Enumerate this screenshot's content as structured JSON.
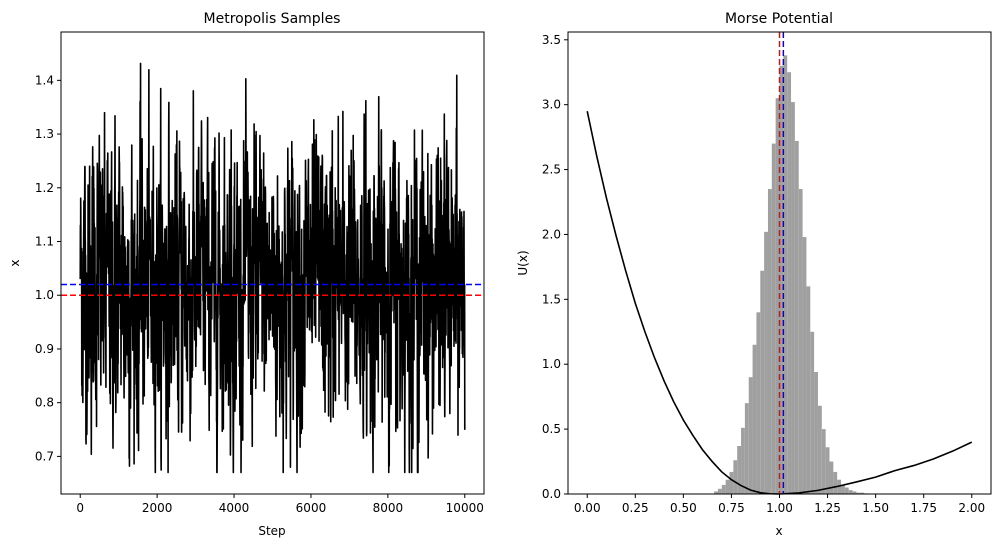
{
  "chart_data": [
    {
      "type": "line",
      "title": "Metropolis Samples",
      "xlabel": "Step",
      "ylabel": "x",
      "xlim": [
        -500,
        10500
      ],
      "ylim": [
        0.63,
        1.49
      ],
      "xticks": [
        0,
        2000,
        4000,
        6000,
        8000,
        10000
      ],
      "xtick_labels": [
        "0",
        "2000",
        "4000",
        "6000",
        "8000",
        "10000"
      ],
      "yticks": [
        0.7,
        0.8,
        0.9,
        1.0,
        1.1,
        1.2,
        1.3,
        1.4
      ],
      "ytick_labels": [
        "0.7",
        "0.8",
        "0.9",
        "1.0",
        "1.1",
        "1.2",
        "1.3",
        "1.4"
      ],
      "grid": false,
      "series": [
        {
          "color": "#000000",
          "n_steps": 10000,
          "start": 1.1,
          "mean": 1.02,
          "std": 0.13,
          "min": 0.67,
          "max": 1.45
        }
      ],
      "hlines": [
        {
          "y": 1.0,
          "color": "#ff0000",
          "style": "dashed"
        },
        {
          "y": 1.02,
          "color": "#0000ff",
          "style": "dashed"
        }
      ]
    },
    {
      "type": "line",
      "title": "Morse Potential",
      "xlabel": "x",
      "ylabel": "U(x)",
      "xlim": [
        -0.1,
        2.1
      ],
      "ylim": [
        0,
        3.56
      ],
      "xticks": [
        0,
        0.25,
        0.5,
        0.75,
        1.0,
        1.25,
        1.5,
        1.75,
        2.0
      ],
      "xtick_labels": [
        "0.00",
        "0.25",
        "0.50",
        "0.75",
        "1.00",
        "1.25",
        "1.50",
        "1.75",
        "2.00"
      ],
      "yticks": [
        0,
        0.5,
        1.0,
        1.5,
        2.0,
        2.5,
        3.0,
        3.5
      ],
      "ytick_labels": [
        "0.0",
        "0.5",
        "1.0",
        "1.5",
        "2.0",
        "2.5",
        "3.0",
        "3.5"
      ],
      "grid": false,
      "curve": {
        "color": "#000000",
        "x": [
          0,
          0.05,
          0.1,
          0.15,
          0.2,
          0.25,
          0.3,
          0.35,
          0.4,
          0.45,
          0.5,
          0.55,
          0.6,
          0.65,
          0.7,
          0.75,
          0.8,
          0.85,
          0.9,
          0.95,
          1.0,
          1.1,
          1.2,
          1.3,
          1.4,
          1.5,
          1.6,
          1.7,
          1.8,
          1.9,
          2.0
        ],
        "y": [
          2.95,
          2.6,
          2.28,
          1.99,
          1.72,
          1.47,
          1.25,
          1.05,
          0.87,
          0.71,
          0.57,
          0.45,
          0.34,
          0.25,
          0.17,
          0.11,
          0.065,
          0.03,
          0.01,
          0.002,
          0.0,
          0.008,
          0.028,
          0.058,
          0.093,
          0.13,
          0.18,
          0.22,
          0.27,
          0.33,
          0.4
        ]
      },
      "histogram": {
        "color": "#a0a0a0",
        "x": [
          0.66,
          0.68,
          0.7,
          0.72,
          0.74,
          0.76,
          0.78,
          0.8,
          0.82,
          0.84,
          0.86,
          0.88,
          0.9,
          0.92,
          0.94,
          0.96,
          0.98,
          1.0,
          1.02,
          1.04,
          1.06,
          1.08,
          1.1,
          1.12,
          1.14,
          1.16,
          1.18,
          1.2,
          1.22,
          1.24,
          1.26,
          1.28,
          1.3,
          1.32,
          1.34,
          1.36,
          1.38,
          1.4,
          1.42,
          1.44
        ],
        "y": [
          0.02,
          0.04,
          0.07,
          0.11,
          0.17,
          0.26,
          0.37,
          0.51,
          0.7,
          0.9,
          1.15,
          1.4,
          1.72,
          2.02,
          2.35,
          2.7,
          3.05,
          3.3,
          3.38,
          3.25,
          3.02,
          2.72,
          2.35,
          1.98,
          1.6,
          1.25,
          0.94,
          0.68,
          0.5,
          0.36,
          0.25,
          0.17,
          0.11,
          0.07,
          0.05,
          0.03,
          0.02,
          0.01,
          0.01,
          0.005
        ]
      },
      "vlines": [
        {
          "x": 1.0,
          "color": "#ff0000",
          "style": "dashed"
        },
        {
          "x": 1.02,
          "color": "#0000ff",
          "style": "dashed"
        }
      ]
    }
  ]
}
